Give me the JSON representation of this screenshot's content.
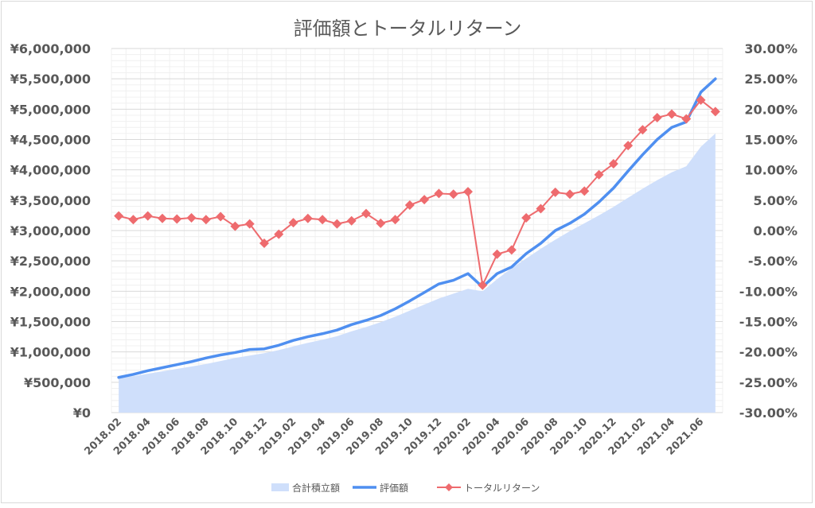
{
  "chart_data": {
    "type": "line",
    "title": "評価額とトータルリターン",
    "x": [
      "2018.02",
      "2018.03",
      "2018.04",
      "2018.05",
      "2018.06",
      "2018.07",
      "2018.08",
      "2018.09",
      "2018.10",
      "2018.11",
      "2018.12",
      "2019.01",
      "2019.02",
      "2019.03",
      "2019.04",
      "2019.05",
      "2019.06",
      "2019.07",
      "2019.08",
      "2019.09",
      "2019.10",
      "2019.11",
      "2019.12",
      "2020.01",
      "2020.02",
      "2020.03",
      "2020.04",
      "2020.05",
      "2020.06",
      "2020.07",
      "2020.08",
      "2020.09",
      "2020.10",
      "2020.11",
      "2020.12",
      "2021.01",
      "2021.02",
      "2021.03",
      "2021.04",
      "2021.05",
      "2021.06",
      "2021.07"
    ],
    "x_tick_labels": [
      "2018.02",
      "2018.04",
      "2018.06",
      "2018.08",
      "2018.10",
      "2018.12",
      "2019.02",
      "2019.04",
      "2019.06",
      "2019.08",
      "2019.10",
      "2019.12",
      "2020.02",
      "2020.04",
      "2020.06",
      "2020.08",
      "2020.10",
      "2020.12",
      "2021.02",
      "2021.04",
      "2021.06"
    ],
    "y_left": {
      "min": 0,
      "max": 6000000,
      "step": 500000,
      "tick_labels": [
        "¥0",
        "¥500,000",
        "¥1,000,000",
        "¥1,500,000",
        "¥2,000,000",
        "¥2,500,000",
        "¥3,000,000",
        "¥3,500,000",
        "¥4,000,000",
        "¥4,500,000",
        "¥5,000,000",
        "¥5,500,000",
        "¥6,000,000"
      ]
    },
    "y_right": {
      "min": -30,
      "max": 30,
      "step": 5,
      "tick_labels": [
        "-30.00%",
        "-25.00%",
        "-20.00%",
        "-15.00%",
        "-10.00%",
        "-5.00%",
        "0.00%",
        "5.00%",
        "10.00%",
        "15.00%",
        "20.00%",
        "25.00%",
        "30.00%"
      ]
    },
    "grid": true,
    "legend_position": "bottom",
    "series": [
      {
        "name": "合計積立額",
        "type": "area",
        "axis": "left",
        "color": "#cfdffb",
        "values": [
          570000,
          600000,
          640000,
          680000,
          720000,
          760000,
          800000,
          850000,
          900000,
          940000,
          980000,
          1030000,
          1090000,
          1150000,
          1200000,
          1260000,
          1340000,
          1410000,
          1490000,
          1580000,
          1680000,
          1780000,
          1880000,
          1960000,
          2040000,
          2000000,
          2200000,
          2380000,
          2540000,
          2700000,
          2850000,
          2990000,
          3120000,
          3250000,
          3390000,
          3540000,
          3690000,
          3830000,
          3960000,
          4060000,
          4380000,
          4600000
        ]
      },
      {
        "name": "評価額",
        "type": "line",
        "axis": "left",
        "color": "#4f8ff0",
        "values": [
          580000,
          630000,
          690000,
          740000,
          790000,
          840000,
          900000,
          950000,
          990000,
          1040000,
          1050000,
          1110000,
          1190000,
          1250000,
          1300000,
          1360000,
          1450000,
          1520000,
          1600000,
          1710000,
          1840000,
          1980000,
          2120000,
          2180000,
          2290000,
          2070000,
          2290000,
          2400000,
          2620000,
          2790000,
          3000000,
          3120000,
          3270000,
          3470000,
          3700000,
          3980000,
          4250000,
          4500000,
          4700000,
          4790000,
          5280000,
          5500000
        ]
      },
      {
        "name": "トータルリターン",
        "type": "line",
        "axis": "right",
        "color": "#ee6b6e",
        "marker": "diamond",
        "values": [
          2.4,
          1.8,
          2.4,
          2.0,
          1.9,
          2.1,
          1.8,
          2.3,
          0.7,
          1.1,
          -2.1,
          -0.6,
          1.3,
          2.0,
          1.8,
          1.1,
          1.6,
          2.8,
          1.2,
          1.8,
          4.2,
          5.1,
          6.1,
          6.0,
          6.4,
          -9.0,
          -3.9,
          -3.2,
          2.1,
          3.6,
          6.3,
          6.0,
          6.5,
          9.2,
          11.0,
          14.0,
          16.6,
          18.6,
          19.2,
          18.4,
          21.5,
          19.6
        ]
      }
    ]
  }
}
